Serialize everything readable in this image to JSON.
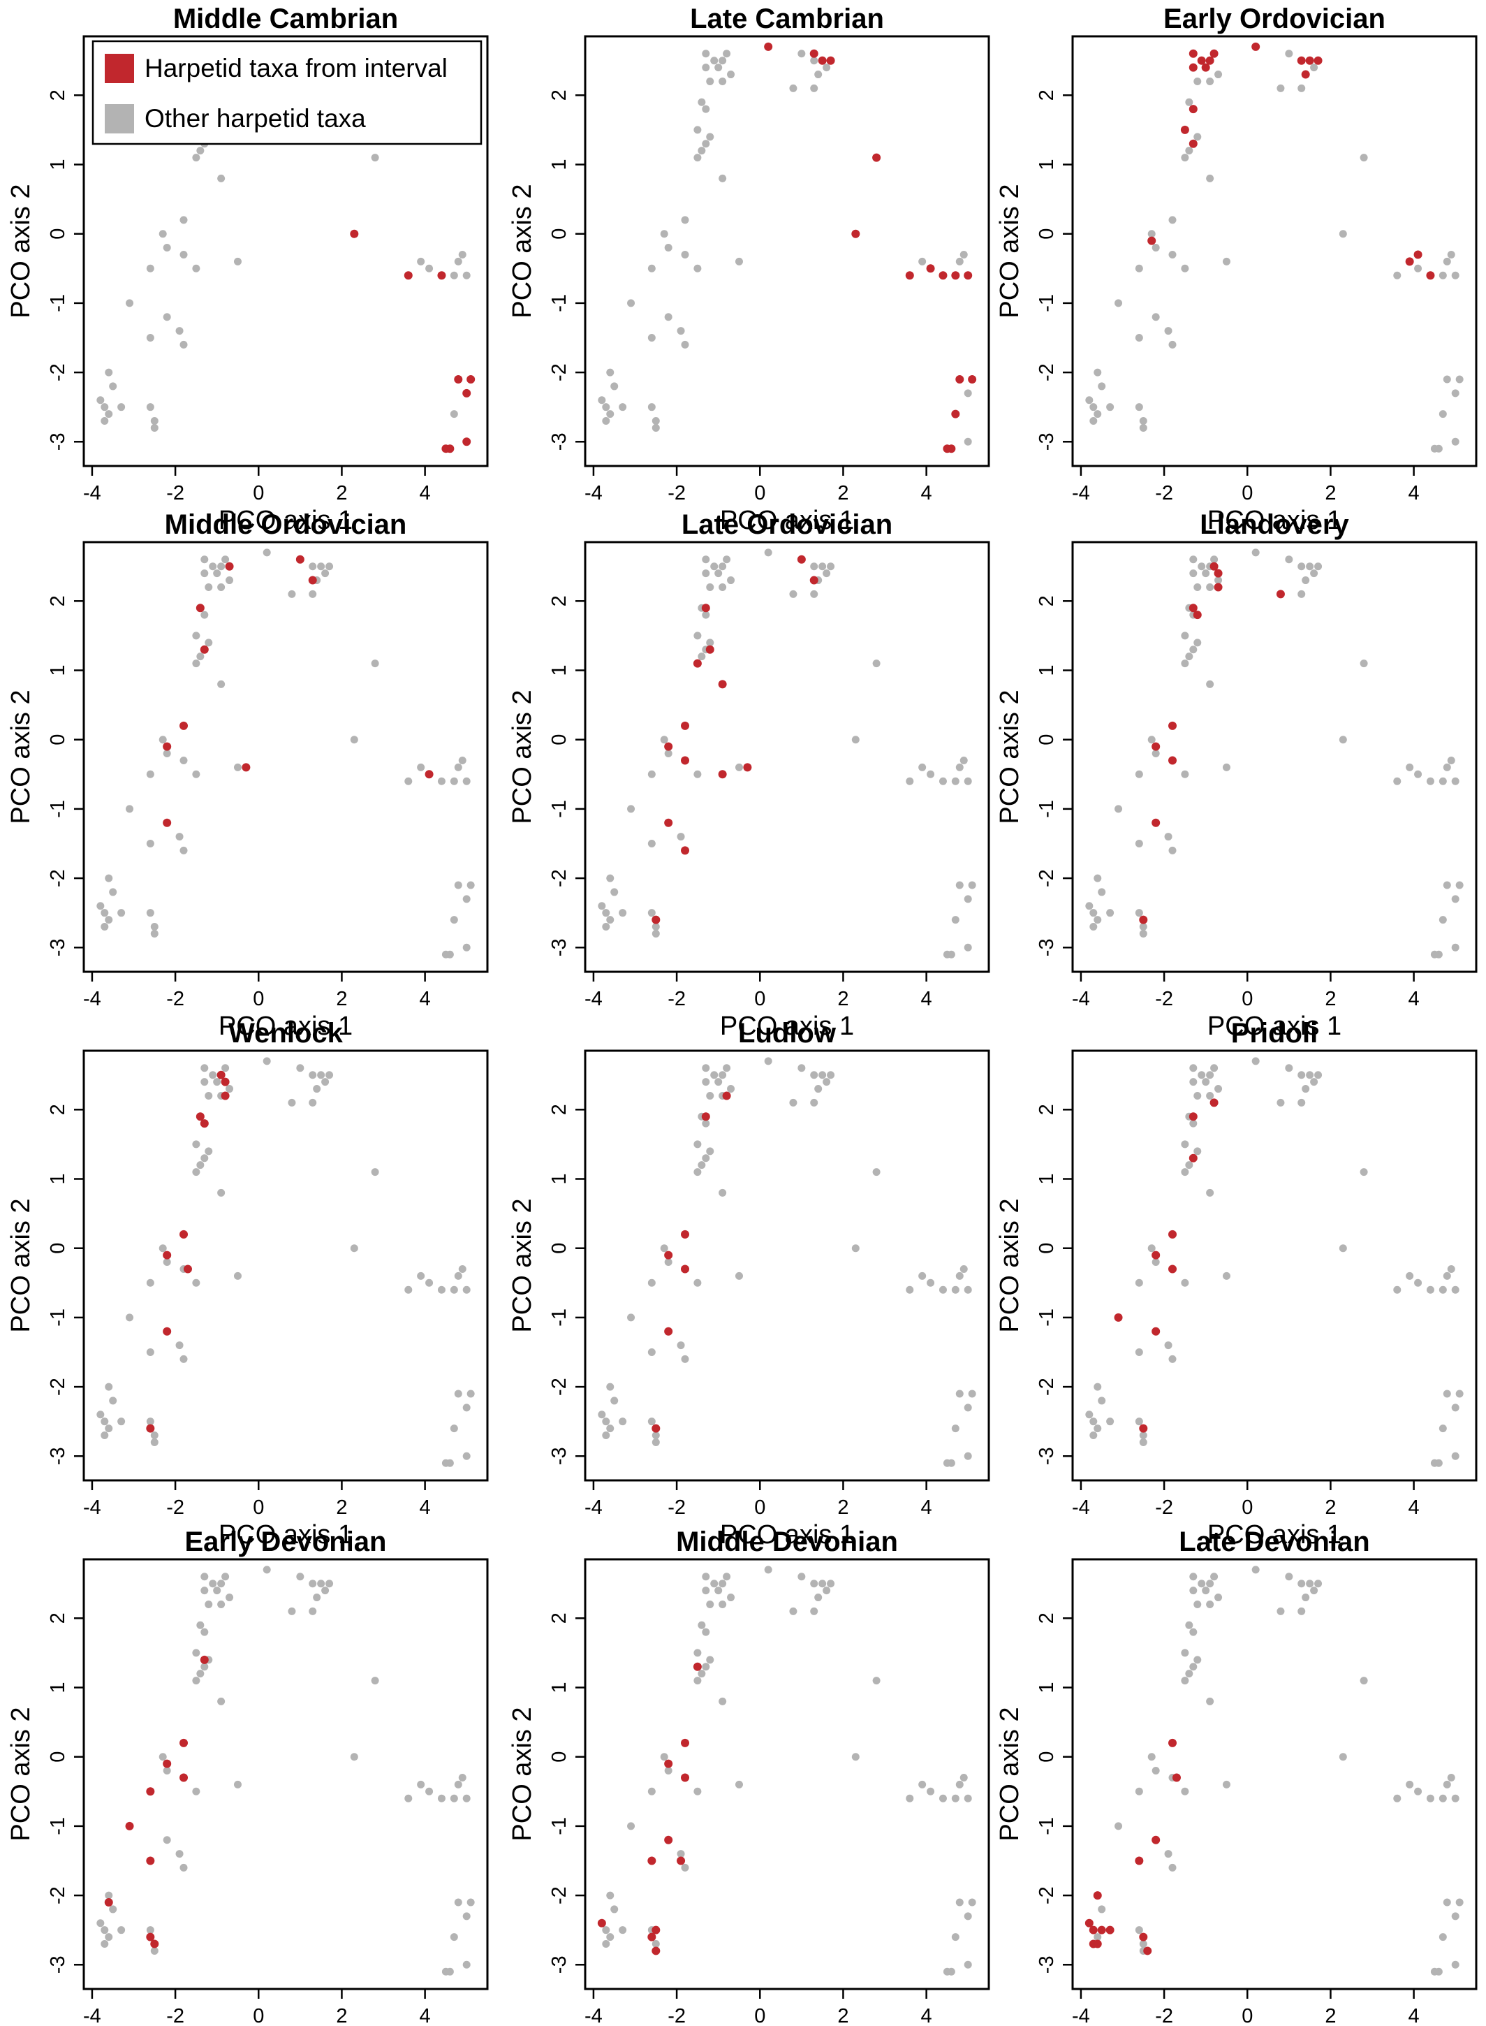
{
  "colors": {
    "highlight": "#c1272d",
    "other": "#b3b3b3",
    "axis": "#000000"
  },
  "legend": [
    {
      "label": "Harpetid taxa from interval",
      "color": "#c1272d"
    },
    {
      "label": "Other harpetid taxa",
      "color": "#b3b3b3"
    }
  ],
  "chart_data": {
    "type": "scatter",
    "xlabel": "PCO axis 1",
    "ylabel": "PCO axis 2",
    "xlim": [
      -4.2,
      5.5
    ],
    "ylim": [
      -3.35,
      2.85
    ],
    "x_ticks": [
      -4,
      -2,
      0,
      2,
      4
    ],
    "y_ticks": [
      -3,
      -2,
      -1,
      0,
      1,
      2
    ],
    "all_taxa": [
      [
        -1.3,
        2.6
      ],
      [
        -1.1,
        2.5
      ],
      [
        -0.9,
        2.5
      ],
      [
        -0.8,
        2.6
      ],
      [
        -1.3,
        2.4
      ],
      [
        -1.0,
        2.4
      ],
      [
        -0.7,
        2.3
      ],
      [
        -1.2,
        2.2
      ],
      [
        -0.9,
        2.2
      ],
      [
        0.2,
        2.7
      ],
      [
        1.0,
        2.6
      ],
      [
        1.3,
        2.5
      ],
      [
        1.5,
        2.5
      ],
      [
        1.7,
        2.5
      ],
      [
        1.4,
        2.3
      ],
      [
        1.6,
        2.4
      ],
      [
        0.8,
        2.1
      ],
      [
        1.3,
        2.1
      ],
      [
        -1.4,
        1.9
      ],
      [
        -1.3,
        1.8
      ],
      [
        -1.2,
        1.4
      ],
      [
        -1.5,
        1.5
      ],
      [
        -1.4,
        1.2
      ],
      [
        -1.3,
        1.3
      ],
      [
        -0.9,
        0.8
      ],
      [
        -1.5,
        1.1
      ],
      [
        2.8,
        1.1
      ],
      [
        -1.8,
        0.2
      ],
      [
        -2.3,
        0.0
      ],
      [
        -2.2,
        -0.2
      ],
      [
        -1.8,
        -0.3
      ],
      [
        -2.6,
        -0.5
      ],
      [
        -1.5,
        -0.5
      ],
      [
        -0.5,
        -0.4
      ],
      [
        -3.1,
        -1.0
      ],
      [
        -2.2,
        -1.2
      ],
      [
        -1.9,
        -1.4
      ],
      [
        -2.6,
        -1.5
      ],
      [
        -1.8,
        -1.6
      ],
      [
        2.3,
        0.0
      ],
      [
        -3.6,
        -2.0
      ],
      [
        -3.5,
        -2.2
      ],
      [
        -3.8,
        -2.4
      ],
      [
        -3.7,
        -2.5
      ],
      [
        -3.6,
        -2.6
      ],
      [
        -3.3,
        -2.5
      ],
      [
        -3.7,
        -2.7
      ],
      [
        -2.6,
        -2.5
      ],
      [
        -2.5,
        -2.7
      ],
      [
        -2.5,
        -2.8
      ],
      [
        3.6,
        -0.6
      ],
      [
        3.9,
        -0.4
      ],
      [
        4.1,
        -0.5
      ],
      [
        4.4,
        -0.6
      ],
      [
        4.8,
        -0.4
      ],
      [
        4.7,
        -0.6
      ],
      [
        5.0,
        -0.6
      ],
      [
        4.9,
        -0.3
      ],
      [
        4.8,
        -2.1
      ],
      [
        5.1,
        -2.1
      ],
      [
        5.0,
        -2.3
      ],
      [
        4.7,
        -2.6
      ],
      [
        4.6,
        -3.1
      ],
      [
        4.5,
        -3.1
      ],
      [
        5.0,
        -3.0
      ]
    ],
    "panels": [
      {
        "title": "Middle Cambrian",
        "highlight": [
          [
            2.3,
            0.0
          ],
          [
            3.6,
            -0.6
          ],
          [
            4.4,
            -0.6
          ],
          [
            4.8,
            -2.1
          ],
          [
            5.1,
            -2.1
          ],
          [
            5.0,
            -2.3
          ],
          [
            4.6,
            -3.1
          ],
          [
            4.5,
            -3.1
          ],
          [
            5.0,
            -3.0
          ]
        ]
      },
      {
        "title": "Late Cambrian",
        "highlight": [
          [
            0.2,
            2.7
          ],
          [
            1.3,
            2.6
          ],
          [
            1.5,
            2.5
          ],
          [
            1.7,
            2.5
          ],
          [
            2.8,
            1.1
          ],
          [
            2.3,
            0.0
          ],
          [
            3.6,
            -0.6
          ],
          [
            4.1,
            -0.5
          ],
          [
            4.4,
            -0.6
          ],
          [
            4.7,
            -0.6
          ],
          [
            5.0,
            -0.6
          ],
          [
            4.8,
            -2.1
          ],
          [
            5.1,
            -2.1
          ],
          [
            4.7,
            -2.6
          ],
          [
            4.6,
            -3.1
          ],
          [
            4.5,
            -3.1
          ]
        ]
      },
      {
        "title": "Early Ordovician",
        "highlight": [
          [
            -1.3,
            2.6
          ],
          [
            -1.1,
            2.5
          ],
          [
            -0.9,
            2.5
          ],
          [
            -0.8,
            2.6
          ],
          [
            -1.3,
            2.4
          ],
          [
            -1.0,
            2.4
          ],
          [
            0.2,
            2.7
          ],
          [
            1.3,
            2.5
          ],
          [
            1.5,
            2.5
          ],
          [
            1.7,
            2.5
          ],
          [
            1.4,
            2.3
          ],
          [
            -1.3,
            1.8
          ],
          [
            -1.5,
            1.5
          ],
          [
            -1.3,
            1.3
          ],
          [
            -2.3,
            -0.1
          ],
          [
            3.9,
            -0.4
          ],
          [
            4.1,
            -0.3
          ],
          [
            4.4,
            -0.6
          ]
        ]
      },
      {
        "title": "Middle Ordovician",
        "highlight": [
          [
            -0.7,
            2.5
          ],
          [
            1.0,
            2.6
          ],
          [
            1.3,
            2.3
          ],
          [
            -1.4,
            1.9
          ],
          [
            -1.3,
            1.3
          ],
          [
            -1.8,
            0.2
          ],
          [
            -2.2,
            -0.1
          ],
          [
            -0.3,
            -0.4
          ],
          [
            -2.2,
            -1.2
          ],
          [
            4.1,
            -0.5
          ]
        ]
      },
      {
        "title": "Late Ordovician",
        "highlight": [
          [
            1.0,
            2.6
          ],
          [
            1.3,
            2.3
          ],
          [
            -1.3,
            1.9
          ],
          [
            -1.2,
            1.3
          ],
          [
            -1.5,
            1.1
          ],
          [
            -0.9,
            0.8
          ],
          [
            -1.8,
            0.2
          ],
          [
            -2.2,
            -0.1
          ],
          [
            -1.8,
            -0.3
          ],
          [
            -0.3,
            -0.4
          ],
          [
            -0.9,
            -0.5
          ],
          [
            -2.2,
            -1.2
          ],
          [
            -1.8,
            -1.6
          ],
          [
            -2.5,
            -2.6
          ]
        ]
      },
      {
        "title": "Llandovery",
        "highlight": [
          [
            -0.8,
            2.5
          ],
          [
            -0.7,
            2.4
          ],
          [
            -0.7,
            2.2
          ],
          [
            0.8,
            2.1
          ],
          [
            -1.3,
            1.9
          ],
          [
            -1.2,
            1.8
          ],
          [
            -1.8,
            0.2
          ],
          [
            -2.2,
            -0.1
          ],
          [
            -1.8,
            -0.3
          ],
          [
            -2.2,
            -1.2
          ],
          [
            -2.5,
            -2.6
          ]
        ]
      },
      {
        "title": "Wenlock",
        "highlight": [
          [
            -0.9,
            2.5
          ],
          [
            -0.8,
            2.4
          ],
          [
            -0.8,
            2.2
          ],
          [
            -1.4,
            1.9
          ],
          [
            -1.3,
            1.8
          ],
          [
            -1.8,
            0.2
          ],
          [
            -2.2,
            -0.1
          ],
          [
            -1.7,
            -0.3
          ],
          [
            -2.2,
            -1.2
          ],
          [
            -2.6,
            -2.6
          ]
        ]
      },
      {
        "title": "Ludlow",
        "highlight": [
          [
            -0.8,
            2.2
          ],
          [
            -1.3,
            1.9
          ],
          [
            -1.8,
            0.2
          ],
          [
            -2.2,
            -0.1
          ],
          [
            -1.8,
            -0.3
          ],
          [
            -2.2,
            -1.2
          ],
          [
            -2.5,
            -2.6
          ]
        ]
      },
      {
        "title": "Pridoli",
        "highlight": [
          [
            -0.8,
            2.1
          ],
          [
            -1.3,
            1.9
          ],
          [
            -1.3,
            1.3
          ],
          [
            -1.8,
            0.2
          ],
          [
            -2.2,
            -0.1
          ],
          [
            -1.8,
            -0.3
          ],
          [
            -3.1,
            -1.0
          ],
          [
            -2.2,
            -1.2
          ],
          [
            -2.5,
            -2.6
          ]
        ]
      },
      {
        "title": "Early Devonian",
        "highlight": [
          [
            -1.3,
            1.4
          ],
          [
            -1.8,
            0.2
          ],
          [
            -2.2,
            -0.1
          ],
          [
            -1.8,
            -0.3
          ],
          [
            -2.6,
            -0.5
          ],
          [
            -3.1,
            -1.0
          ],
          [
            -2.6,
            -1.5
          ],
          [
            -3.6,
            -2.1
          ],
          [
            -2.6,
            -2.6
          ],
          [
            -2.5,
            -2.7
          ]
        ]
      },
      {
        "title": "Middle Devonian",
        "highlight": [
          [
            -1.5,
            1.3
          ],
          [
            -1.8,
            0.2
          ],
          [
            -2.2,
            -0.1
          ],
          [
            -1.8,
            -0.3
          ],
          [
            -2.6,
            -1.5
          ],
          [
            -2.2,
            -1.2
          ],
          [
            -1.9,
            -1.5
          ],
          [
            -3.8,
            -2.4
          ],
          [
            -2.5,
            -2.5
          ],
          [
            -2.6,
            -2.6
          ],
          [
            -2.5,
            -2.8
          ]
        ]
      },
      {
        "title": "Late Devonian",
        "highlight": [
          [
            -1.8,
            0.2
          ],
          [
            -1.7,
            -0.3
          ],
          [
            -2.6,
            -1.5
          ],
          [
            -2.2,
            -1.2
          ],
          [
            -3.6,
            -2.0
          ],
          [
            -3.8,
            -2.4
          ],
          [
            -3.7,
            -2.5
          ],
          [
            -3.5,
            -2.5
          ],
          [
            -3.3,
            -2.5
          ],
          [
            -3.7,
            -2.7
          ],
          [
            -3.6,
            -2.7
          ],
          [
            -2.5,
            -2.6
          ],
          [
            -2.4,
            -2.8
          ]
        ]
      }
    ]
  }
}
